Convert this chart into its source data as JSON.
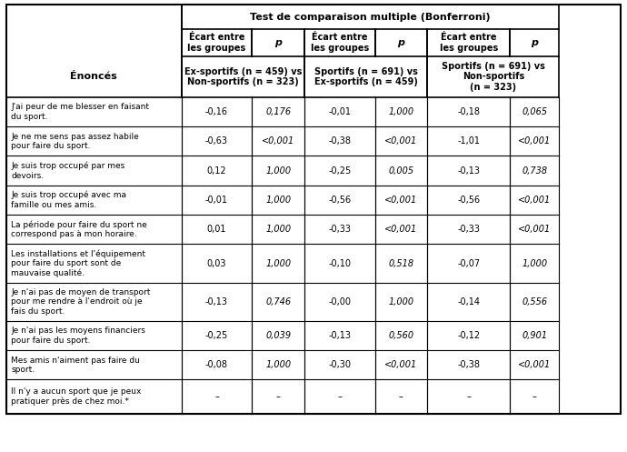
{
  "title": "Test de comparaison multiple (Bonferroni)",
  "col_header_left": "Énoncés",
  "col_groups": [
    {
      "label": "Ex-sportifs (n = 459) vs\nNon-sportifs (n = 323)",
      "ecart_label": "Écart entre\nles groupes",
      "p_label": "p"
    },
    {
      "label": "Sportifs (n = 691) vs\nEx-sportifs (n = 459)",
      "ecart_label": "Écart entre\nles groupes",
      "p_label": "p"
    },
    {
      "label": "Sportifs (n = 691) vs\nNon-sportifs\n(n = 323)",
      "ecart_label": "Écart entre\nles groupes",
      "p_label": "p"
    }
  ],
  "rows": [
    {
      "enonce": "J'ai peur de me blesser en faisant\ndu sport.",
      "values": [
        "-0,16",
        "0,176",
        "-0,01",
        "1,000",
        "-0,18",
        "0,065"
      ]
    },
    {
      "enonce": "Je ne me sens pas assez habile\npour faire du sport.",
      "values": [
        "-0,63",
        "<0,001",
        "-0,38",
        "<0,001",
        "-1,01",
        "<0,001"
      ]
    },
    {
      "enonce": "Je suis trop occupé par mes\ndevoirs.",
      "values": [
        "0,12",
        "1,000",
        "-0,25",
        "0,005",
        "-0,13",
        "0,738"
      ]
    },
    {
      "enonce": "Je suis trop occupé avec ma\nfamille ou mes amis.",
      "values": [
        "-0,01",
        "1,000",
        "-0,56",
        "<0,001",
        "-0,56",
        "<0,001"
      ]
    },
    {
      "enonce": "La période pour faire du sport ne\ncorrespond pas à mon horaire.",
      "values": [
        "0,01",
        "1,000",
        "-0,33",
        "<0,001",
        "-0,33",
        "<0,001"
      ]
    },
    {
      "enonce": "Les installations et l'équipement\npour faire du sport sont de\nmauvaise qualité.",
      "values": [
        "0,03",
        "1,000",
        "-0,10",
        "0,518",
        "-0,07",
        "1,000"
      ]
    },
    {
      "enonce": "Je n'ai pas de moyen de transport\npour me rendre à l'endroit où je\nfais du sport.",
      "values": [
        "-0,13",
        "0,746",
        "-0,00",
        "1,000",
        "-0,14",
        "0,556"
      ]
    },
    {
      "enonce": "Je n'ai pas les moyens financiers\npour faire du sport.",
      "values": [
        "-0,25",
        "0,039",
        "-0,13",
        "0,560",
        "-0,12",
        "0,901"
      ]
    },
    {
      "enonce": "Mes amis n'aiment pas faire du\nsport.",
      "values": [
        "-0,08",
        "1,000",
        "-0,30",
        "<0,001",
        "-0,38",
        "<0,001"
      ]
    },
    {
      "enonce": "Il n'y a aucun sport que je peux\npratiquer près de chez moi.*",
      "values": [
        "–",
        "–",
        "–",
        "–",
        "–",
        "–"
      ]
    }
  ]
}
